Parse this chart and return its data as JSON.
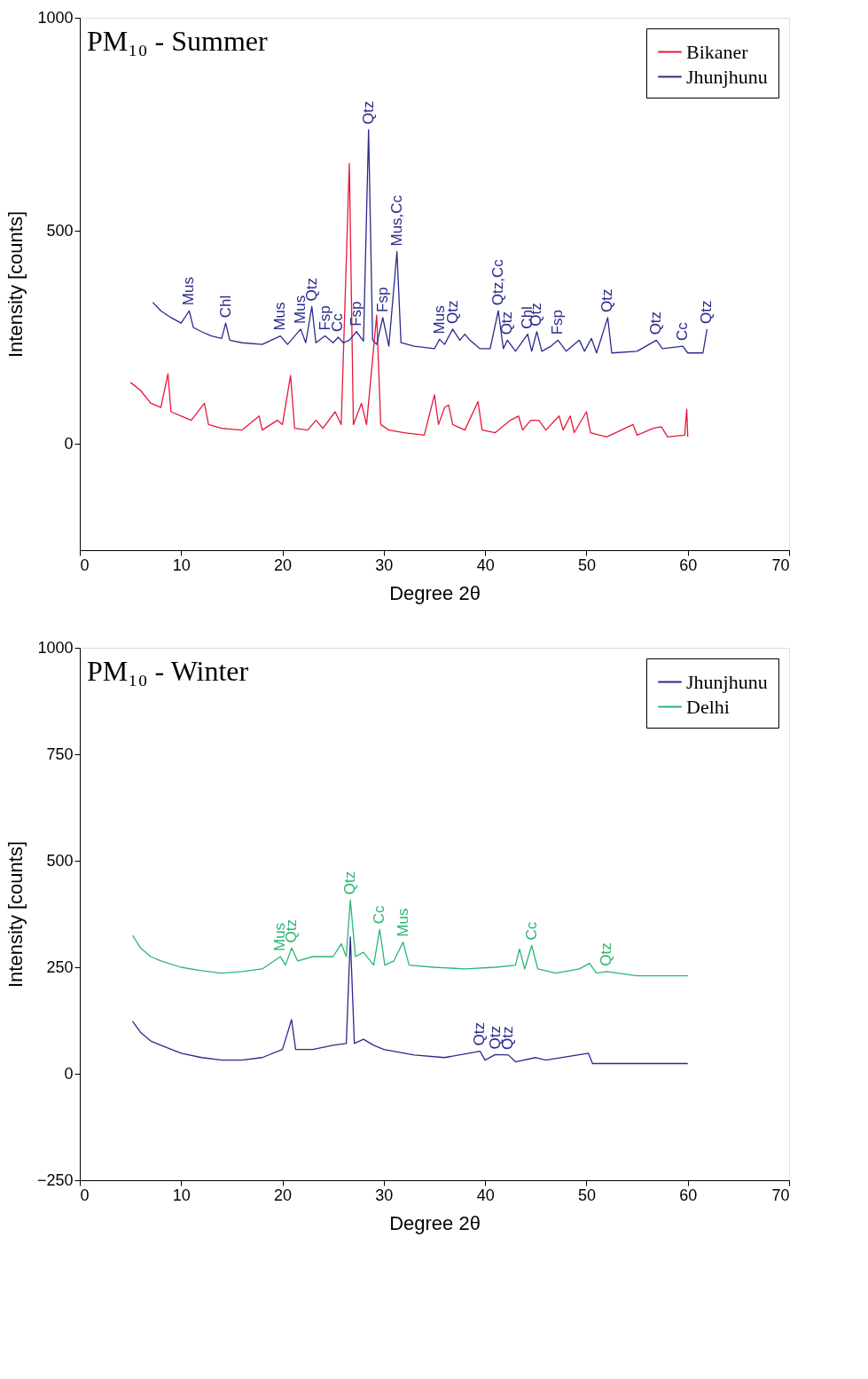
{
  "chart_data": [
    {
      "type": "line",
      "title": "PM₁₀ - Summer",
      "xlabel": "Degree 2θ",
      "ylabel": "Intensity [counts]",
      "xlim": [
        0,
        70
      ],
      "xticks": [
        0,
        10,
        20,
        30,
        40,
        50,
        60,
        70
      ],
      "ylim": [
        -250,
        1000
      ],
      "yticks": [
        0,
        500,
        1000
      ],
      "grid": false,
      "legend": "top right",
      "series": [
        {
          "name": "Bikaner",
          "color": "#e8173a",
          "x": [
            5,
            6,
            7,
            8,
            8.7,
            9,
            10,
            11,
            12.3,
            12.7,
            14,
            16,
            17.7,
            18,
            19.5,
            20,
            20.8,
            21.2,
            22.5,
            23.3,
            24,
            25.2,
            25.8,
            26.6,
            27,
            27.8,
            28.3,
            29.3,
            29.7,
            30.5,
            32,
            34,
            35,
            35.4,
            36,
            36.4,
            36.8,
            38,
            39.3,
            39.7,
            41,
            42.5,
            43.3,
            43.7,
            44.5,
            45.3,
            46,
            47.3,
            47.7,
            48.4,
            48.8,
            50,
            50.4,
            52,
            54.6,
            55,
            56.6,
            57.4,
            58,
            59.7,
            59.9,
            60
          ],
          "values": [
            144,
            125,
            95,
            85,
            164,
            75,
            65,
            55,
            95,
            45,
            36,
            32,
            65,
            32,
            55,
            45,
            160,
            36,
            32,
            55,
            36,
            75,
            45,
            658,
            45,
            95,
            45,
            302,
            45,
            32,
            26,
            20,
            115,
            45,
            85,
            91,
            45,
            32,
            99,
            32,
            26,
            55,
            65,
            32,
            55,
            55,
            32,
            65,
            32,
            65,
            26,
            75,
            26,
            16,
            45,
            20,
            36,
            40,
            16,
            20,
            81,
            16
          ]
        },
        {
          "name": "Jhunjhunu",
          "color": "#2a2a8c",
          "x": [
            7.2,
            8,
            9,
            10,
            10.8,
            11.2,
            12,
            13,
            14,
            14.4,
            14.8,
            16,
            18,
            19.8,
            20.5,
            21.8,
            22.3,
            22.9,
            23.3,
            24.2,
            25,
            25.5,
            26,
            26.6,
            27.3,
            28,
            28.5,
            28.9,
            29.3,
            29.9,
            30.5,
            31.3,
            31.7,
            33,
            35,
            35.5,
            36,
            36.8,
            37.5,
            38,
            38.5,
            39.5,
            40.5,
            41.3,
            41.8,
            42.2,
            43,
            44.2,
            44.6,
            45.1,
            45.6,
            46.5,
            47.2,
            48,
            49.3,
            49.8,
            50.5,
            51,
            52.1,
            52.5,
            55,
            56.9,
            57.5,
            59.5,
            60,
            61.5,
            61.9
          ],
          "values": [
            332,
            312,
            296,
            283,
            312,
            273,
            263,
            253,
            247,
            283,
            243,
            237,
            233,
            253,
            233,
            269,
            237,
            322,
            237,
            253,
            237,
            250,
            237,
            243,
            263,
            241,
            737,
            243,
            233,
            296,
            229,
            451,
            237,
            229,
            223,
            245,
            233,
            269,
            243,
            257,
            243,
            223,
            223,
            312,
            223,
            243,
            217,
            257,
            217,
            263,
            217,
            229,
            243,
            217,
            243,
            217,
            247,
            213,
            296,
            213,
            217,
            243,
            223,
            229,
            213,
            213,
            269
          ]
        }
      ],
      "annotations": [
        {
          "text": "Mus",
          "x": 10.8,
          "y": 312
        },
        {
          "text": "Chl",
          "x": 14.4,
          "y": 283
        },
        {
          "text": "Mus",
          "x": 19.8,
          "y": 253
        },
        {
          "text": "Mus",
          "x": 21.8,
          "y": 269
        },
        {
          "text": "Qtz",
          "x": 22.9,
          "y": 322
        },
        {
          "text": "Fsp",
          "x": 24.2,
          "y": 253
        },
        {
          "text": "Cc",
          "x": 25.5,
          "y": 250
        },
        {
          "text": "Fsp",
          "x": 27.3,
          "y": 263
        },
        {
          "text": "Qtz",
          "x": 28.5,
          "y": 737
        },
        {
          "text": "Fsp",
          "x": 29.9,
          "y": 296
        },
        {
          "text": "Mus,Cc",
          "x": 31.3,
          "y": 451
        },
        {
          "text": "Mus",
          "x": 35.5,
          "y": 245
        },
        {
          "text": "Qtz",
          "x": 36.8,
          "y": 269
        },
        {
          "text": "Qtz,Cc",
          "x": 41.3,
          "y": 312
        },
        {
          "text": "Qtz",
          "x": 42.2,
          "y": 243
        },
        {
          "text": "Chl",
          "x": 44.2,
          "y": 257
        },
        {
          "text": "Qtz",
          "x": 45.1,
          "y": 263
        },
        {
          "text": "Fsp",
          "x": 47.2,
          "y": 243
        },
        {
          "text": "Qtz",
          "x": 52.1,
          "y": 296
        },
        {
          "text": "Qtz",
          "x": 56.9,
          "y": 243
        },
        {
          "text": "Cc",
          "x": 59.5,
          "y": 229
        },
        {
          "text": "Qtz",
          "x": 61.9,
          "y": 269
        }
      ]
    },
    {
      "type": "line",
      "title": "PM₁₀ - Winter",
      "xlabel": "Degree 2θ",
      "ylabel": "Intensity [counts]",
      "xlim": [
        0,
        70
      ],
      "xticks": [
        0,
        10,
        20,
        30,
        40,
        50,
        60,
        70
      ],
      "ylim": [
        -250,
        1000
      ],
      "yticks": [
        -250,
        0,
        250,
        500,
        750,
        1000
      ],
      "grid": false,
      "legend": "top right",
      "series": [
        {
          "name": "Jhunjhunu",
          "color": "#2a2a8c",
          "x": [
            5.2,
            6,
            7,
            8,
            10,
            12,
            14,
            16,
            18,
            20,
            20.9,
            21.3,
            23,
            25,
            26.3,
            26.7,
            27.1,
            28,
            29,
            30,
            33,
            36,
            39.5,
            40,
            41,
            42.3,
            43,
            45,
            46,
            50.2,
            50.6,
            55,
            60
          ],
          "values": [
            123,
            97,
            77,
            67,
            48,
            38,
            32,
            32,
            38,
            57,
            127,
            57,
            57,
            67,
            71,
            321,
            71,
            81,
            67,
            57,
            44,
            38,
            53,
            32,
            45,
            44,
            28,
            38,
            32,
            48,
            24,
            24,
            24
          ]
        },
        {
          "name": "Delhi",
          "color": "#2bb673",
          "x": [
            5.2,
            6,
            7,
            8,
            10,
            12,
            14,
            16,
            18,
            19.8,
            20.3,
            20.9,
            21.5,
            23,
            25,
            25.8,
            26.3,
            26.7,
            27.2,
            28,
            29,
            29.6,
            30.1,
            31,
            31.9,
            32.5,
            35,
            38,
            41,
            43,
            43.4,
            43.9,
            44.6,
            45.2,
            47,
            49.3,
            50.3,
            51,
            52,
            55,
            60
          ],
          "values": [
            325,
            295,
            275,
            265,
            250,
            242,
            236,
            240,
            246,
            275,
            255,
            295,
            265,
            275,
            275,
            305,
            275,
            408,
            275,
            285,
            255,
            339,
            255,
            265,
            309,
            255,
            250,
            246,
            250,
            255,
            293,
            246,
            301,
            246,
            236,
            246,
            259,
            236,
            240,
            230,
            230
          ]
        }
      ],
      "annotations": [
        {
          "text": "Mus",
          "x": 19.8,
          "y": 275
        },
        {
          "text": "Qtz",
          "x": 20.9,
          "y": 295
        },
        {
          "text": "Qtz",
          "x": 26.7,
          "y": 408
        },
        {
          "text": "Cc",
          "x": 29.6,
          "y": 339
        },
        {
          "text": "Mus",
          "x": 31.9,
          "y": 309
        },
        {
          "text": "Cc",
          "x": 44.6,
          "y": 301
        },
        {
          "text": "Qtz",
          "x": 52,
          "y": 240
        },
        {
          "text": "Qtz",
          "x": 39.5,
          "y": 53
        },
        {
          "text": "Qtz",
          "x": 41,
          "y": 45
        },
        {
          "text": "Qtz",
          "x": 42.3,
          "y": 44
        }
      ]
    }
  ]
}
